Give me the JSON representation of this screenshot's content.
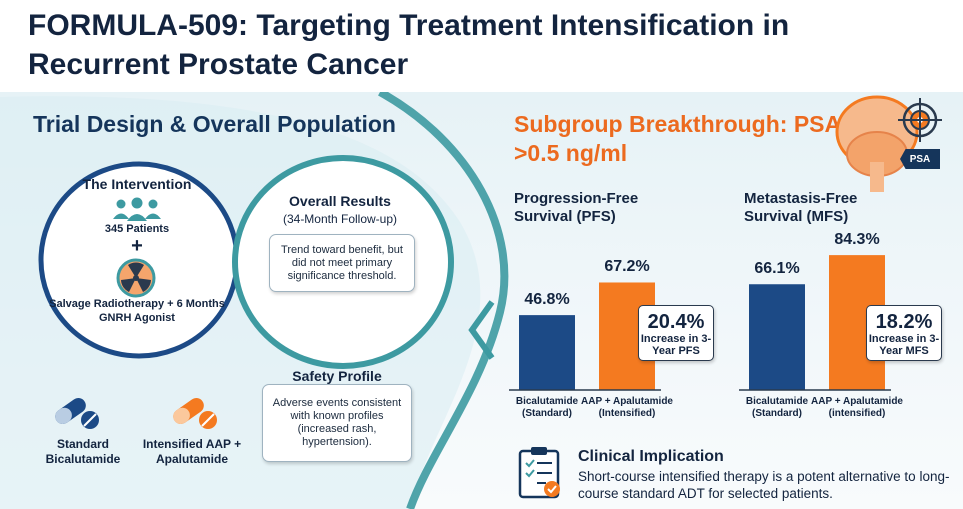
{
  "title": "FORMULA-509: Targeting Treatment Intensification in Recurrent Prostate Cancer",
  "left_panel": {
    "heading": "Trial Design & Overall Population",
    "intervention": {
      "title": "The Intervention",
      "patients": "345 Patients",
      "plus": "+",
      "description": "Salvage Radiotherapy + 6 Months GNRH Agonist"
    },
    "overall_results": {
      "title": "Overall Results",
      "subtitle": "(34-Month Follow-up)",
      "text": "Trend toward benefit, but did not meet primary significance threshold."
    },
    "safety": {
      "title": "Safety Profile",
      "text": "Adverse events consistent with known profiles (increased rash, hypertension)."
    },
    "arms": {
      "standard": "Standard Bicalutamide",
      "intensified": "Intensified AAP + Apalutamide"
    }
  },
  "right_panel": {
    "heading": "Subgroup Breakthrough: PSA >0.5 ng/ml",
    "psa_tag": "PSA",
    "implication": {
      "title": "Clinical Implication",
      "text": "Short-course intensified therapy is a potent alternative to long-course standard ADT for selected patients."
    }
  },
  "colors": {
    "navy": "#1c4a86",
    "orange": "#f47a20",
    "accent_orange": "#ec6a1f",
    "teal": "#4aa7ad",
    "dark": "#13243f"
  },
  "chart_data": [
    {
      "type": "bar",
      "title": "Progression-Free Survival (PFS)",
      "categories": [
        "Bicalutamide (Standard)",
        "AAP + Apalutamide (Intensified)"
      ],
      "values": [
        46.8,
        67.2
      ],
      "value_labels": [
        "46.8%",
        "67.2%"
      ],
      "colors": [
        "#1c4a86",
        "#f47a20"
      ],
      "ylim": [
        0,
        100
      ],
      "callout": {
        "value": "20.4%",
        "text": "Increase in 3-Year PFS"
      }
    },
    {
      "type": "bar",
      "title": "Metastasis-Free Survival (MFS)",
      "categories": [
        "Bicalutamide (Standard)",
        "AAP + Apalutamide (intensified)"
      ],
      "values": [
        66.1,
        84.3
      ],
      "value_labels": [
        "66.1%",
        "84.3%"
      ],
      "colors": [
        "#1c4a86",
        "#f47a20"
      ],
      "ylim": [
        0,
        100
      ],
      "callout": {
        "value": "18.2%",
        "text": "Increase in 3-Year MFS"
      }
    }
  ]
}
